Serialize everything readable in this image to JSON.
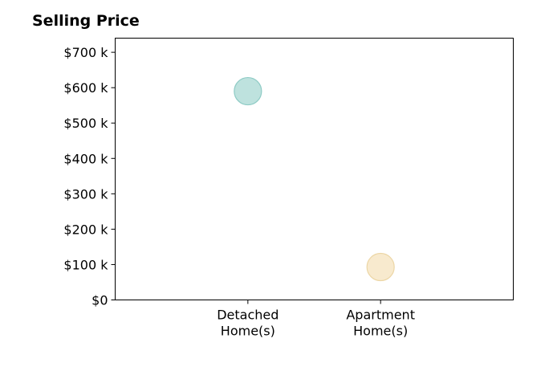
{
  "chart_data": {
    "type": "scatter",
    "title": "Selling Price",
    "xlabel": "",
    "ylabel": "",
    "categories": [
      [
        "Detached",
        "Home(s)"
      ],
      [
        "Apartment",
        "Home(s)"
      ]
    ],
    "values": [
      590000,
      93000
    ],
    "point_colors": [
      "#a8d8d3",
      "#f5e3bd"
    ],
    "point_edge_colors": [
      "#8ecbc5",
      "#ecd6a5"
    ],
    "y_ticks": [
      0,
      100000,
      200000,
      300000,
      400000,
      500000,
      600000,
      700000
    ],
    "y_tick_labels": [
      "$0",
      "$100 k",
      "$200 k",
      "$300 k",
      "$400 k",
      "$500 k",
      "$600 k",
      "$700 k"
    ],
    "ylim": [
      0,
      740000
    ],
    "x_range": [
      0,
      3
    ],
    "x_positions": [
      1,
      2
    ],
    "grid": false,
    "legend": "none"
  }
}
